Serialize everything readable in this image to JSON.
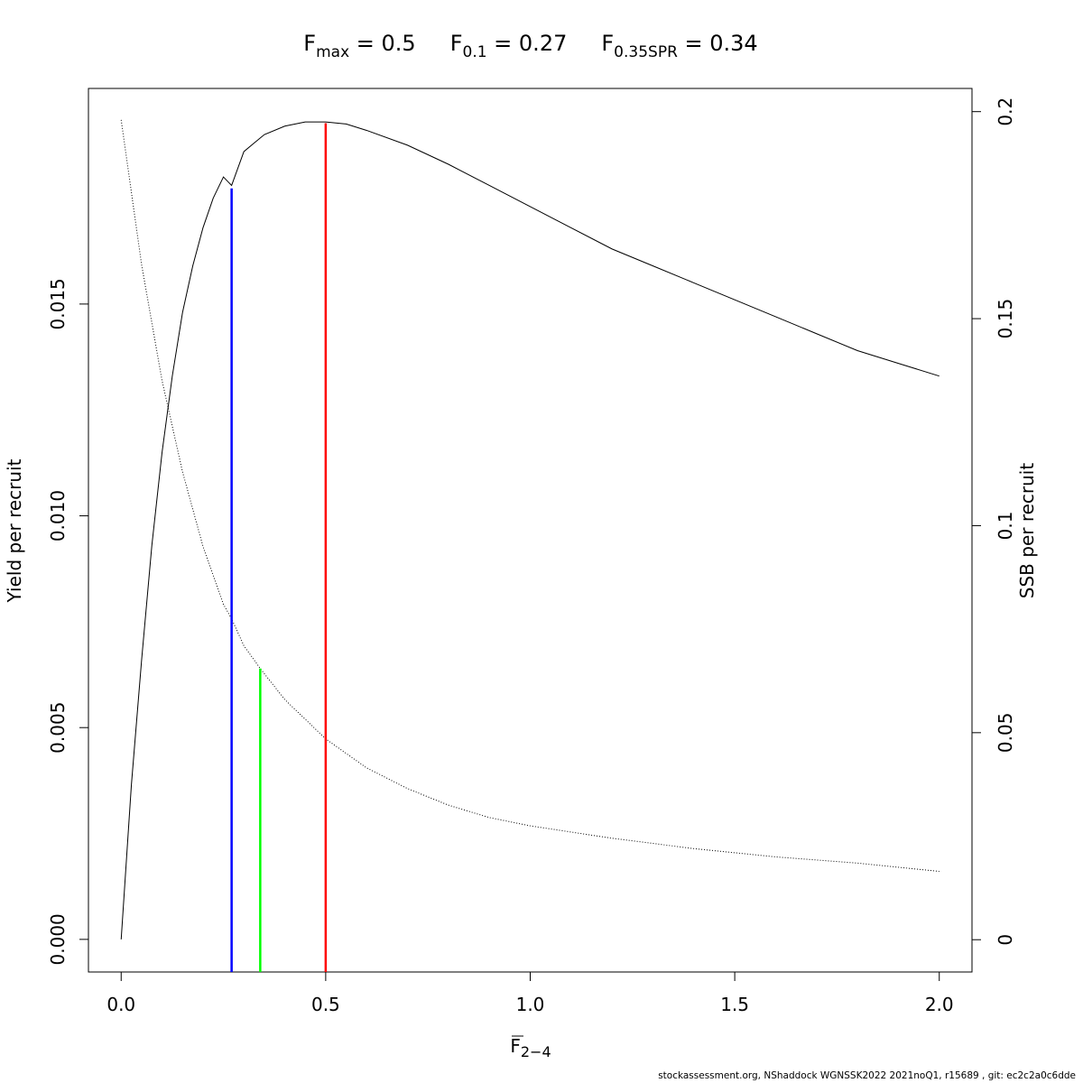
{
  "title": {
    "parts": [
      {
        "main": "F",
        "sub": "max",
        "rest": " = 0.5"
      },
      {
        "main": "F",
        "sub": "0.1",
        "rest": " = 0.27"
      },
      {
        "main": "F",
        "sub": "0.35SPR",
        "rest": " = 0.34"
      }
    ]
  },
  "footer": "stockassessment.org, NShaddock  WGNSSK2022  2021noQ1, r15689 , git: ec2c2a0c6dde",
  "chart_data": {
    "type": "line",
    "xlabel": {
      "main": "F",
      "sub": "2−4",
      "overline": true
    },
    "ylabel": "Yield per recruit",
    "y2label": "SSB per recruit",
    "xlim": [
      -0.08,
      2.08
    ],
    "ylim": [
      -0.00077,
      0.02009
    ],
    "y2lim": [
      -0.0078,
      0.2056
    ],
    "x_ticks": [
      0,
      0.5,
      1,
      1.5,
      2
    ],
    "x_tick_labels": [
      "0.0",
      "0.5",
      "1.0",
      "1.5",
      "2.0"
    ],
    "y_ticks": [
      0,
      0.005,
      0.01,
      0.015
    ],
    "y_tick_labels": [
      "0.000",
      "0.005",
      "0.010",
      "0.015"
    ],
    "y2_ticks": [
      0,
      0.05,
      0.1,
      0.15,
      0.2
    ],
    "y2_tick_labels": [
      "0",
      "0.05",
      "0.1",
      "0.15",
      "0.2"
    ],
    "grid": false,
    "series": [
      {
        "axis": "left",
        "line_style": "solid",
        "color": "#000000",
        "x": [
          0,
          0.025,
          0.05,
          0.075,
          0.1,
          0.125,
          0.15,
          0.175,
          0.2,
          0.225,
          0.25,
          0.27,
          0.3,
          0.325,
          0.35,
          0.4,
          0.45,
          0.5,
          0.55,
          0.6,
          0.7,
          0.8,
          0.9,
          1.0,
          1.1,
          1.2,
          1.3,
          1.4,
          1.5,
          1.6,
          1.7,
          1.8,
          1.9,
          2.0
        ],
        "y": [
          0,
          0.00365,
          0.0066,
          0.0093,
          0.0115,
          0.0133,
          0.0148,
          0.0159,
          0.0168,
          0.0175,
          0.018,
          0.0178,
          0.0186,
          0.0188,
          0.019,
          0.0192,
          0.0193,
          0.0193,
          0.01925,
          0.0191,
          0.01875,
          0.0183,
          0.0178,
          0.0173,
          0.0168,
          0.0163,
          0.0159,
          0.0155,
          0.0151,
          0.0147,
          0.0143,
          0.0139,
          0.0136,
          0.0133
        ]
      },
      {
        "axis": "right",
        "line_style": "dotted",
        "color": "#000000",
        "x": [
          0,
          0.05,
          0.1,
          0.15,
          0.2,
          0.25,
          0.27,
          0.3,
          0.34,
          0.4,
          0.5,
          0.6,
          0.7,
          0.8,
          0.9,
          1.0,
          1.2,
          1.4,
          1.6,
          1.8,
          2.0
        ],
        "y": [
          0.198,
          0.163,
          0.135,
          0.113,
          0.095,
          0.081,
          0.0775,
          0.071,
          0.0655,
          0.058,
          0.0485,
          0.0415,
          0.0365,
          0.0325,
          0.0295,
          0.0275,
          0.0245,
          0.022,
          0.02,
          0.0185,
          0.0165
        ]
      }
    ],
    "reference_lines": [
      {
        "name": "F0.1",
        "x": 0.27,
        "y_top": 0.01773,
        "axis": "left",
        "color": "#0000ff"
      },
      {
        "name": "F0.35SPR",
        "x": 0.34,
        "y_top": 0.0655,
        "axis": "right",
        "color": "#00ff00"
      },
      {
        "name": "Fmax",
        "x": 0.5,
        "y_top": 0.01927,
        "axis": "left",
        "color": "#ff0000"
      }
    ]
  }
}
